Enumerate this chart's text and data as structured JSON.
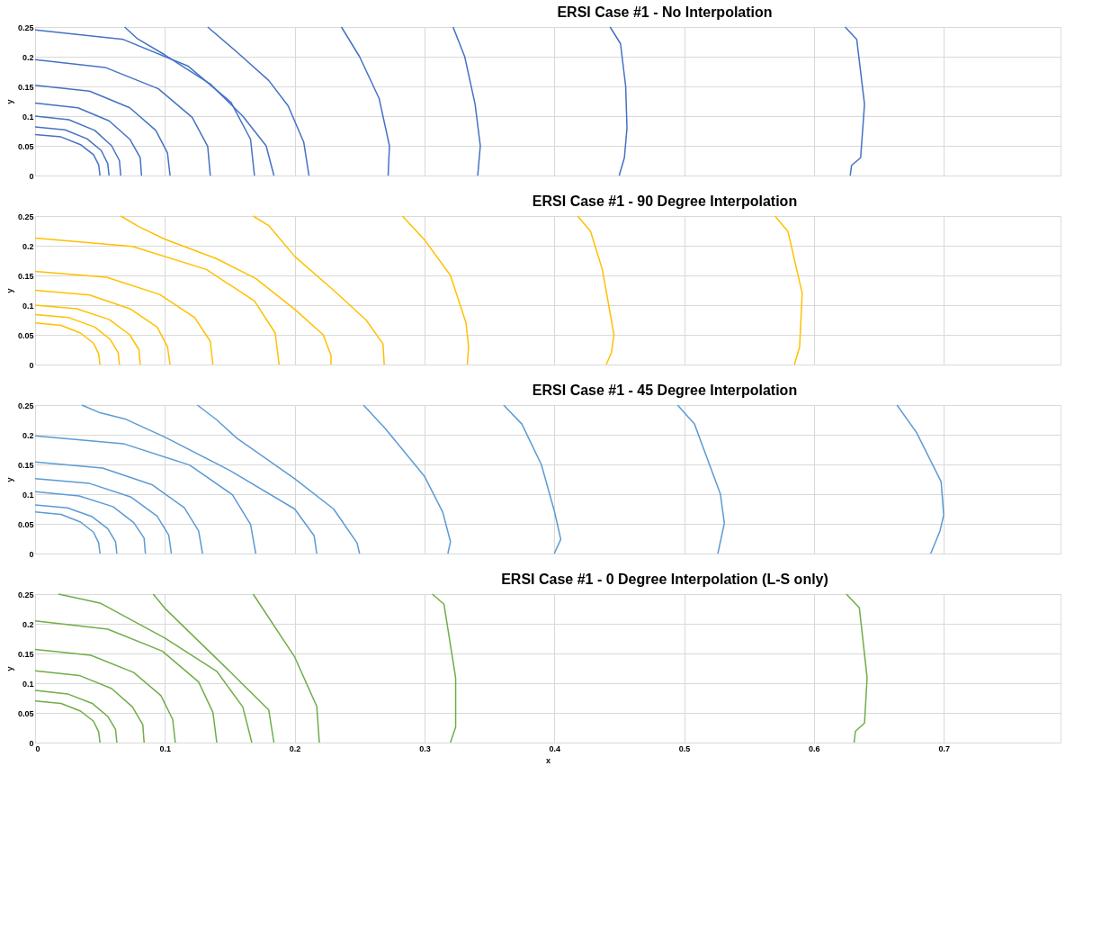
{
  "chart_data": [
    {
      "type": "line",
      "title": "ERSI Case #1 - No Interpolation",
      "ylabel": "y",
      "xlim": [
        0,
        0.79
      ],
      "ylim": [
        0,
        0.25
      ],
      "xticks": [
        0,
        0.1,
        0.2,
        0.3,
        0.4,
        0.5,
        0.6,
        0.7
      ],
      "yticks": [
        0,
        0.05,
        0.1,
        0.15,
        0.2,
        0.25
      ],
      "grid": true,
      "tick_labels": "y",
      "marker": "none",
      "line_style": "solid",
      "series": [
        {
          "color": "#4472c4",
          "x": [
            0,
            0.02,
            0.035,
            0.045,
            0.049,
            0.05
          ],
          "values": [
            0.069,
            0.065,
            0.052,
            0.035,
            0.018,
            0
          ]
        },
        {
          "color": "#4472c4",
          "x": [
            0,
            0.023,
            0.04,
            0.051,
            0.056,
            0.057
          ],
          "values": [
            0.082,
            0.077,
            0.062,
            0.042,
            0.02,
            0
          ]
        },
        {
          "color": "#4472c4",
          "x": [
            0,
            0.026,
            0.046,
            0.059,
            0.065,
            0.066
          ],
          "values": [
            0.1,
            0.094,
            0.076,
            0.05,
            0.025,
            0
          ]
        },
        {
          "color": "#4472c4",
          "x": [
            0,
            0.033,
            0.057,
            0.073,
            0.081,
            0.082
          ],
          "values": [
            0.122,
            0.114,
            0.092,
            0.061,
            0.03,
            0
          ]
        },
        {
          "color": "#4472c4",
          "x": [
            0,
            0.042,
            0.073,
            0.093,
            0.102,
            0.104
          ],
          "values": [
            0.152,
            0.142,
            0.114,
            0.076,
            0.038,
            0
          ]
        },
        {
          "color": "#4472c4",
          "x": [
            0,
            0.054,
            0.095,
            0.121,
            0.133,
            0.135
          ],
          "values": [
            0.195,
            0.182,
            0.146,
            0.098,
            0.049,
            0
          ]
        },
        {
          "color": "#4472c4",
          "x": [
            0,
            0.068,
            0.118,
            0.151,
            0.166,
            0.169
          ],
          "values": [
            0.245,
            0.229,
            0.184,
            0.123,
            0.061,
            0
          ]
        },
        {
          "color": "#4472c4",
          "x": [
            0.069,
            0.079,
            0.1,
            0.135,
            0.16,
            0.178,
            0.184
          ],
          "values": [
            0.25,
            0.23,
            0.203,
            0.154,
            0.1,
            0.05,
            0
          ]
        },
        {
          "color": "#4472c4",
          "x": [
            0.133,
            0.157,
            0.18,
            0.195,
            0.207,
            0.211
          ],
          "values": [
            0.25,
            0.205,
            0.16,
            0.117,
            0.056,
            0
          ]
        },
        {
          "color": "#4472c4",
          "x": [
            0.236,
            0.25,
            0.265,
            0.273,
            0.272
          ],
          "values": [
            0.25,
            0.2,
            0.13,
            0.05,
            0
          ]
        },
        {
          "color": "#4472c4",
          "x": [
            0.322,
            0.331,
            0.339,
            0.343,
            0.341
          ],
          "values": [
            0.25,
            0.2,
            0.12,
            0.05,
            0
          ]
        },
        {
          "color": "#4472c4",
          "x": [
            0.443,
            0.451,
            0.455,
            0.456,
            0.454,
            0.45
          ],
          "values": [
            0.25,
            0.222,
            0.15,
            0.08,
            0.03,
            0
          ]
        },
        {
          "color": "#4472c4",
          "x": [
            0.624,
            0.633,
            0.639,
            0.636,
            0.629,
            0.628
          ],
          "values": [
            0.25,
            0.229,
            0.12,
            0.03,
            0.017,
            0
          ]
        }
      ]
    },
    {
      "type": "line",
      "title": "ERSI Case #1 - 90 Degree Interpolation",
      "ylabel": "y",
      "xlim": [
        0,
        0.79
      ],
      "ylim": [
        0,
        0.25
      ],
      "xticks": [
        0,
        0.1,
        0.2,
        0.3,
        0.4,
        0.5,
        0.6,
        0.7
      ],
      "yticks": [
        0,
        0.05,
        0.1,
        0.15,
        0.2,
        0.25
      ],
      "grid": true,
      "tick_labels": "y",
      "marker": "none",
      "line_style": "solid",
      "series": [
        {
          "color": "#ffc000",
          "x": [
            0,
            0.02,
            0.035,
            0.045,
            0.049,
            0.05
          ],
          "values": [
            0.07,
            0.066,
            0.053,
            0.036,
            0.018,
            0
          ]
        },
        {
          "color": "#ffc000",
          "x": [
            0,
            0.026,
            0.046,
            0.058,
            0.064,
            0.065
          ],
          "values": [
            0.084,
            0.079,
            0.063,
            0.042,
            0.02,
            0
          ]
        },
        {
          "color": "#ffc000",
          "x": [
            0,
            0.032,
            0.057,
            0.073,
            0.08,
            0.081
          ],
          "values": [
            0.1,
            0.094,
            0.076,
            0.05,
            0.025,
            0
          ]
        },
        {
          "color": "#ffc000",
          "x": [
            0,
            0.042,
            0.073,
            0.094,
            0.102,
            0.104
          ],
          "values": [
            0.125,
            0.117,
            0.094,
            0.063,
            0.03,
            0
          ]
        },
        {
          "color": "#ffc000",
          "x": [
            0,
            0.055,
            0.096,
            0.123,
            0.135,
            0.137
          ],
          "values": [
            0.157,
            0.147,
            0.118,
            0.079,
            0.039,
            0
          ]
        },
        {
          "color": "#ffc000",
          "x": [
            0,
            0.075,
            0.132,
            0.169,
            0.185,
            0.188
          ],
          "values": [
            0.213,
            0.199,
            0.16,
            0.107,
            0.053,
            0
          ]
        },
        {
          "color": "#ffc000",
          "x": [
            0.066,
            0.08,
            0.1,
            0.14,
            0.17,
            0.2,
            0.222,
            0.228,
            0.228
          ],
          "values": [
            0.25,
            0.232,
            0.211,
            0.178,
            0.145,
            0.093,
            0.05,
            0.015,
            0
          ]
        },
        {
          "color": "#ffc000",
          "x": [
            0.168,
            0.18,
            0.2,
            0.23,
            0.255,
            0.268,
            0.269
          ],
          "values": [
            0.25,
            0.234,
            0.182,
            0.125,
            0.075,
            0.035,
            0
          ]
        },
        {
          "color": "#ffc000",
          "x": [
            0.283,
            0.3,
            0.32,
            0.332,
            0.334,
            0.333
          ],
          "values": [
            0.25,
            0.21,
            0.15,
            0.07,
            0.03,
            0
          ]
        },
        {
          "color": "#ffc000",
          "x": [
            0.418,
            0.428,
            0.437,
            0.446,
            0.444,
            0.44
          ],
          "values": [
            0.25,
            0.224,
            0.16,
            0.05,
            0.02,
            0
          ]
        },
        {
          "color": "#ffc000",
          "x": [
            0.57,
            0.58,
            0.591,
            0.589,
            0.585
          ],
          "values": [
            0.25,
            0.224,
            0.12,
            0.03,
            0
          ]
        }
      ]
    },
    {
      "type": "line",
      "title": "ERSI Case #1 - 45 Degree Interpolation",
      "ylabel": "y",
      "xlim": [
        0,
        0.79
      ],
      "ylim": [
        0,
        0.25
      ],
      "xticks": [
        0,
        0.1,
        0.2,
        0.3,
        0.4,
        0.5,
        0.6,
        0.7
      ],
      "yticks": [
        0,
        0.05,
        0.1,
        0.15,
        0.2,
        0.25
      ],
      "grid": true,
      "tick_labels": "y",
      "marker": "none",
      "line_style": "solid",
      "series": [
        {
          "color": "#5b9bd5",
          "x": [
            0,
            0.02,
            0.035,
            0.045,
            0.049,
            0.05
          ],
          "values": [
            0.07,
            0.066,
            0.053,
            0.036,
            0.018,
            0
          ]
        },
        {
          "color": "#5b9bd5",
          "x": [
            0,
            0.025,
            0.044,
            0.056,
            0.062,
            0.063
          ],
          "values": [
            0.082,
            0.077,
            0.062,
            0.042,
            0.02,
            0
          ]
        },
        {
          "color": "#5b9bd5",
          "x": [
            0,
            0.034,
            0.06,
            0.076,
            0.084,
            0.085
          ],
          "values": [
            0.104,
            0.097,
            0.079,
            0.052,
            0.026,
            0
          ]
        },
        {
          "color": "#5b9bd5",
          "x": [
            0,
            0.042,
            0.074,
            0.094,
            0.103,
            0.105
          ],
          "values": [
            0.126,
            0.118,
            0.095,
            0.063,
            0.031,
            0
          ]
        },
        {
          "color": "#5b9bd5",
          "x": [
            0,
            0.052,
            0.09,
            0.115,
            0.126,
            0.129
          ],
          "values": [
            0.154,
            0.144,
            0.116,
            0.077,
            0.038,
            0
          ]
        },
        {
          "color": "#5b9bd5",
          "x": [
            0,
            0.068,
            0.119,
            0.152,
            0.166,
            0.17
          ],
          "values": [
            0.198,
            0.185,
            0.149,
            0.099,
            0.049,
            0
          ]
        },
        {
          "color": "#5b9bd5",
          "x": [
            0.036,
            0.05,
            0.07,
            0.1,
            0.15,
            0.2,
            0.215,
            0.217
          ],
          "values": [
            0.25,
            0.237,
            0.226,
            0.196,
            0.14,
            0.075,
            0.03,
            0
          ]
        },
        {
          "color": "#5b9bd5",
          "x": [
            0.125,
            0.14,
            0.155,
            0.2,
            0.23,
            0.248,
            0.25
          ],
          "values": [
            0.25,
            0.225,
            0.195,
            0.126,
            0.075,
            0.018,
            0
          ]
        },
        {
          "color": "#5b9bd5",
          "x": [
            0.253,
            0.27,
            0.3,
            0.314,
            0.32,
            0.318
          ],
          "values": [
            0.25,
            0.21,
            0.13,
            0.07,
            0.02,
            0
          ]
        },
        {
          "color": "#5b9bd5",
          "x": [
            0.361,
            0.375,
            0.39,
            0.4,
            0.405,
            0.4
          ],
          "values": [
            0.25,
            0.218,
            0.15,
            0.072,
            0.024,
            0
          ]
        },
        {
          "color": "#5b9bd5",
          "x": [
            0.495,
            0.508,
            0.528,
            0.531,
            0.526
          ],
          "values": [
            0.25,
            0.218,
            0.1,
            0.051,
            0
          ]
        },
        {
          "color": "#5b9bd5",
          "x": [
            0.664,
            0.679,
            0.698,
            0.7,
            0.697,
            0.69
          ],
          "values": [
            0.25,
            0.204,
            0.121,
            0.065,
            0.037,
            0
          ]
        }
      ]
    },
    {
      "type": "line",
      "title": "ERSI Case #1 - 0 Degree Interpolation (L-S only)",
      "xlabel": "x",
      "ylabel": "y",
      "xlim": [
        0,
        0.79
      ],
      "ylim": [
        0,
        0.25
      ],
      "xticks": [
        0,
        0.1,
        0.2,
        0.3,
        0.4,
        0.5,
        0.6,
        0.7
      ],
      "yticks": [
        0,
        0.05,
        0.1,
        0.15,
        0.2,
        0.25
      ],
      "grid": true,
      "marker": "none",
      "line_style": "solid",
      "series": [
        {
          "color": "#70ad47",
          "x": [
            0,
            0.02,
            0.035,
            0.045,
            0.049,
            0.05
          ],
          "values": [
            0.07,
            0.066,
            0.053,
            0.036,
            0.018,
            0
          ]
        },
        {
          "color": "#70ad47",
          "x": [
            0,
            0.025,
            0.044,
            0.056,
            0.062,
            0.063
          ],
          "values": [
            0.088,
            0.082,
            0.066,
            0.044,
            0.022,
            0
          ]
        },
        {
          "color": "#70ad47",
          "x": [
            0,
            0.034,
            0.059,
            0.075,
            0.083,
            0.084
          ],
          "values": [
            0.121,
            0.113,
            0.091,
            0.06,
            0.03,
            0
          ]
        },
        {
          "color": "#70ad47",
          "x": [
            0,
            0.043,
            0.076,
            0.097,
            0.106,
            0.108
          ],
          "values": [
            0.157,
            0.147,
            0.118,
            0.079,
            0.039,
            0
          ]
        },
        {
          "color": "#70ad47",
          "x": [
            0,
            0.056,
            0.098,
            0.126,
            0.137,
            0.14
          ],
          "values": [
            0.205,
            0.191,
            0.154,
            0.102,
            0.051,
            0
          ]
        },
        {
          "color": "#70ad47",
          "x": [
            0.018,
            0.05,
            0.1,
            0.14,
            0.16,
            0.167
          ],
          "values": [
            0.25,
            0.235,
            0.176,
            0.12,
            0.06,
            0
          ]
        },
        {
          "color": "#70ad47",
          "x": [
            0.091,
            0.1,
            0.148,
            0.18,
            0.184
          ],
          "values": [
            0.25,
            0.226,
            0.124,
            0.055,
            0
          ]
        },
        {
          "color": "#70ad47",
          "x": [
            0.168,
            0.2,
            0.217,
            0.219
          ],
          "values": [
            0.25,
            0.144,
            0.061,
            0
          ]
        },
        {
          "color": "#70ad47",
          "x": [
            0.306,
            0.315,
            0.324,
            0.324,
            0.32
          ],
          "values": [
            0.25,
            0.233,
            0.109,
            0.026,
            0
          ]
        },
        {
          "color": "#70ad47",
          "x": [
            0.625,
            0.635,
            0.641,
            0.639,
            0.632,
            0.631
          ],
          "values": [
            0.25,
            0.227,
            0.109,
            0.033,
            0.019,
            0
          ]
        }
      ]
    }
  ]
}
